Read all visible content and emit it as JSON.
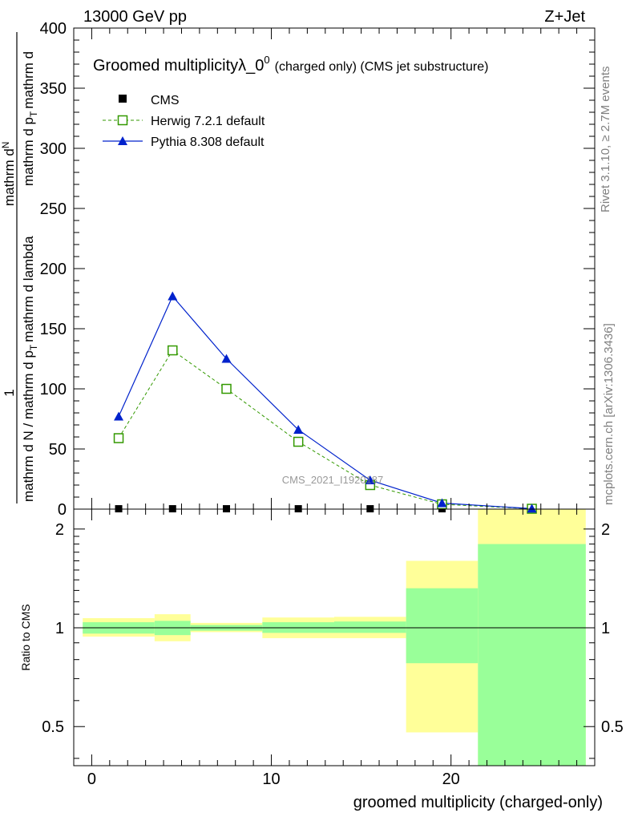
{
  "header": {
    "energy_label": "13000 GeV pp",
    "process_label": "Z+Jet"
  },
  "side_labels": {
    "rivet": "Rivet 3.1.10, ≥ 2.7M events",
    "mcplots": "mcplots.cern.ch [arXiv:1306.3436]"
  },
  "chart_data": {
    "type": "line",
    "title_main": "Groomed multiplicityλ_0",
    "title_sup": "0",
    "title_sub": "(charged only) (CMS jet substructure)",
    "watermark": "CMS_2021_I1920187",
    "ylabel_prefix": "1",
    "ylabel_denominator": "mathrm d N / mathrm d p",
    "ylabel_rest": "mathrm d lambda",
    "ylabel_top": "mathrm d",
    "ylabel_N": "N",
    "ylabel_pt1": "mathrm d p",
    "ylabel_pt_sub": "T",
    "ylabel_pt2": "mathrm d",
    "xlabel": "groomed multiplicity (charged-only)",
    "ratio_ylabel": "Ratio to CMS",
    "main_yticks": [
      "400",
      "350",
      "300",
      "250",
      "200",
      "150",
      "100",
      "50",
      "0"
    ],
    "main_yvalues": [
      400,
      350,
      300,
      250,
      200,
      150,
      100,
      50,
      0
    ],
    "ylim": [
      0,
      400
    ],
    "xlim": [
      -1,
      28
    ],
    "xticks": [
      "0",
      "10",
      "20"
    ],
    "xtick_values": [
      0,
      10,
      20
    ],
    "ratio_yticks": [
      "2",
      "1",
      "0.5"
    ],
    "ratio_ytick_values": [
      2,
      1,
      0.5
    ],
    "ratio_ylim": [
      0.38,
      2.3
    ],
    "ratio_log": true,
    "bins": [
      {
        "lo": -0.5,
        "hi": 3.5
      },
      {
        "lo": 3.5,
        "hi": 5.5
      },
      {
        "lo": 5.5,
        "hi": 9.5
      },
      {
        "lo": 9.5,
        "hi": 13.5
      },
      {
        "lo": 13.5,
        "hi": 17.5
      },
      {
        "lo": 17.5,
        "hi": 21.5
      },
      {
        "lo": 21.5,
        "hi": 27.5
      }
    ],
    "series": [
      {
        "name": "CMS",
        "color": "#000000",
        "marker": "filled-square",
        "x": [
          1.5,
          4.5,
          7.5,
          11.5,
          15.5,
          19.5,
          24.5
        ],
        "y": [
          0.3,
          0.3,
          0.3,
          0.3,
          0.3,
          0.3,
          0.2
        ]
      },
      {
        "name": "Herwig 7.2.1 default",
        "color": "#339900",
        "marker": "open-square",
        "dashed": true,
        "x": [
          1.5,
          4.5,
          7.5,
          11.5,
          15.5,
          19.5,
          24.5
        ],
        "y": [
          59,
          132,
          100,
          56,
          20,
          4,
          0.3
        ]
      },
      {
        "name": "Pythia 8.308 default",
        "color": "#0022cc",
        "marker": "filled-triangle",
        "dashed": false,
        "x": [
          1.5,
          4.5,
          7.5,
          11.5,
          15.5,
          19.5,
          24.5
        ],
        "y": [
          77,
          177,
          125,
          66,
          24,
          5,
          0.4
        ]
      }
    ],
    "ratio_bands": {
      "yellow_color": "#ffff99",
      "green_color": "#99ff99",
      "yellow": [
        {
          "lo": 0.94,
          "hi": 1.07
        },
        {
          "lo": 0.91,
          "hi": 1.1
        },
        {
          "lo": 0.97,
          "hi": 1.035
        },
        {
          "lo": 0.93,
          "hi": 1.075
        },
        {
          "lo": 0.93,
          "hi": 1.08
        },
        {
          "lo": 0.48,
          "hi": 1.6
        },
        {
          "lo": 0.38,
          "hi": 2.3
        }
      ],
      "green": [
        {
          "lo": 0.96,
          "hi": 1.04
        },
        {
          "lo": 0.95,
          "hi": 1.05
        },
        {
          "lo": 0.98,
          "hi": 1.02
        },
        {
          "lo": 0.965,
          "hi": 1.04
        },
        {
          "lo": 0.965,
          "hi": 1.045
        },
        {
          "lo": 0.78,
          "hi": 1.32
        },
        {
          "lo": 0.38,
          "hi": 1.8
        }
      ]
    }
  }
}
